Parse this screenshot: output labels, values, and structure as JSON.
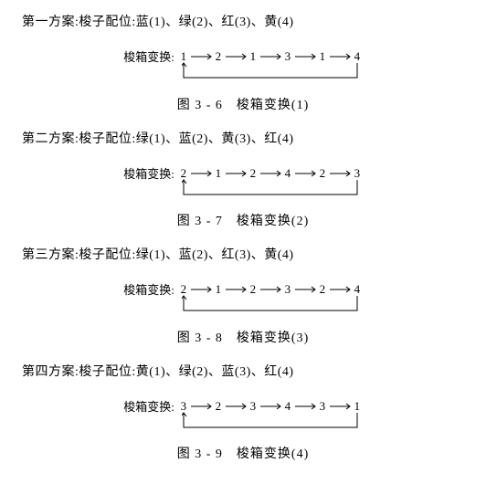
{
  "colors": {
    "text": "#000000",
    "background": "#ffffff",
    "stroke": "#000000"
  },
  "diagram_label": "梭箱变换:",
  "arrow": {
    "segment_width": 26,
    "num_width": 12,
    "loop_depth": 16,
    "stroke_width": 1
  },
  "schemes": [
    {
      "heading": "第一方案:梭子配位:蓝(1)、绿(2)、红(3)、黄(4)",
      "sequence": [
        "1",
        "2",
        "1",
        "3",
        "1",
        "4"
      ],
      "loop_from_index": 5,
      "loop_to_index": 0,
      "caption": "图 3 - 6　梭箱变换(1)"
    },
    {
      "heading": "第二方案:梭子配位:绿(1)、蓝(2)、黄(3)、红(4)",
      "sequence": [
        "2",
        "1",
        "2",
        "4",
        "2",
        "3"
      ],
      "loop_from_index": 5,
      "loop_to_index": 0,
      "caption": "图 3 - 7　梭箱变换(2)"
    },
    {
      "heading": "第三方案:梭子配位:绿(1)、蓝(2)、红(3)、黄(4)",
      "sequence": [
        "2",
        "1",
        "2",
        "3",
        "2",
        "4"
      ],
      "loop_from_index": 5,
      "loop_to_index": 0,
      "caption": "图 3 - 8　梭箱变换(3)"
    },
    {
      "heading": "第四方案:梭子配位:黄(1)、绿(2)、蓝(3)、红(4)",
      "sequence": [
        "3",
        "2",
        "3",
        "4",
        "3",
        "1"
      ],
      "loop_from_index": 5,
      "loop_to_index": 0,
      "caption": "图 3 - 9　梭箱变换(4)"
    }
  ]
}
